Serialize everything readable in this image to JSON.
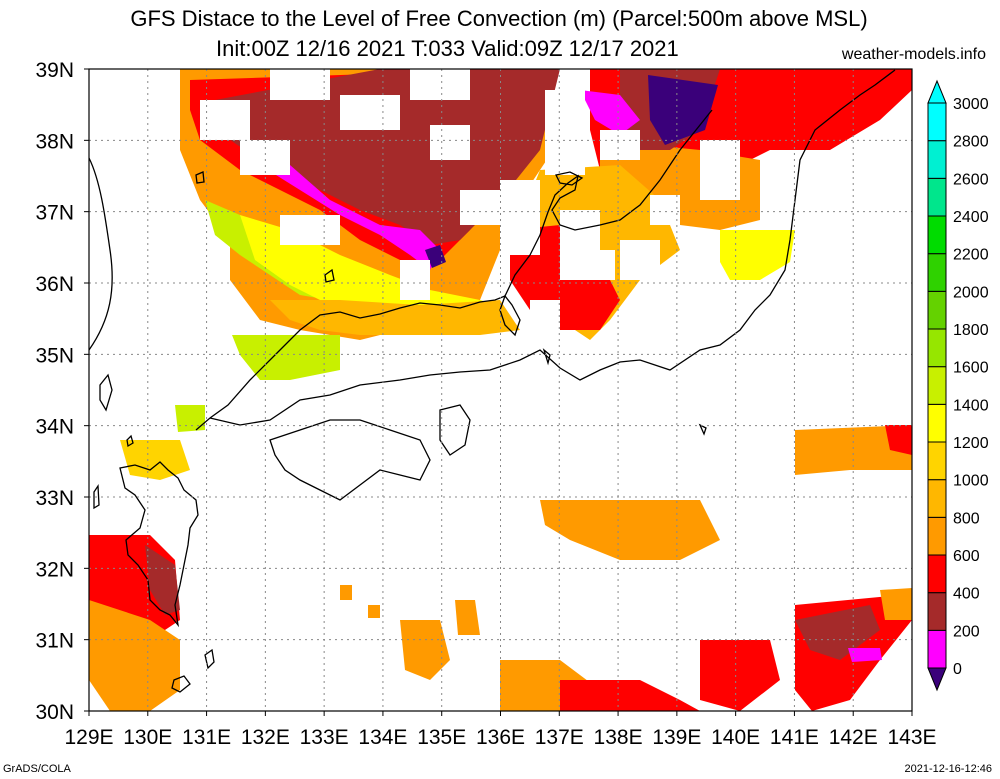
{
  "header": {
    "title_line1": "GFS Distace to the Level of Free Convection (m) (Parcel:500m above MSL)",
    "title_line2": "Init:00Z 12/16 2021 T:033 Valid:09Z 12/17 2021",
    "site": "weather-models.info"
  },
  "footer": {
    "left": "GrADS/COLA",
    "right": "2021-12-16-12:46"
  },
  "map": {
    "lon_labels": [
      "129E",
      "130E",
      "131E",
      "132E",
      "133E",
      "134E",
      "135E",
      "136E",
      "137E",
      "138E",
      "139E",
      "140E",
      "141E",
      "142E",
      "143E"
    ],
    "lat_labels": [
      "30N",
      "31N",
      "32N",
      "33N",
      "34N",
      "35N",
      "36N",
      "37N",
      "38N",
      "39N"
    ],
    "lon_range": [
      129,
      143
    ],
    "lat_range": [
      30,
      39
    ],
    "grid": true
  },
  "colorbar": {
    "labels": [
      "0",
      "200",
      "400",
      "600",
      "800",
      "1000",
      "1200",
      "1400",
      "1600",
      "1800",
      "2000",
      "2200",
      "2400",
      "2600",
      "2800",
      "3000"
    ],
    "colors": [
      "#3a007a",
      "#ff00ff",
      "#a52a2a",
      "#ff0000",
      "#ff9a00",
      "#ffb700",
      "#ffd400",
      "#ffff00",
      "#c8f000",
      "#96e600",
      "#64d200",
      "#2fd200",
      "#00dc00",
      "#00e68c",
      "#00f0d2",
      "#00ffff"
    ]
  }
}
